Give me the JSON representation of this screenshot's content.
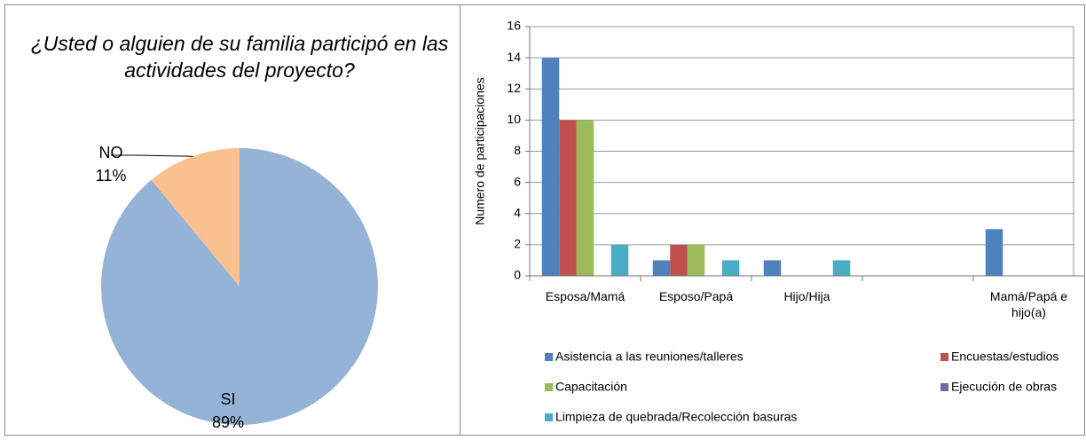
{
  "chart_data": [
    {
      "type": "pie",
      "title": "¿Usted o alguien de su familia participó en las actividades del proyecto?",
      "categories": [
        "SI",
        "NO"
      ],
      "values": [
        89,
        11
      ],
      "value_labels": [
        "89%",
        "11%"
      ],
      "colors": [
        "#95b3d7",
        "#fac090"
      ]
    },
    {
      "type": "bar",
      "categories": [
        "Esposa/Mamá",
        "Esposo/Papá",
        "Hijo/Hija",
        null,
        "Mamá/Papá e hijo(a)"
      ],
      "ylabel": "Numero de participaciones",
      "ylim": [
        0,
        16
      ],
      "yticks": [
        0,
        2,
        4,
        6,
        8,
        10,
        12,
        14,
        16
      ],
      "grid": true,
      "series": [
        {
          "name": "Asistencia a las reuniones/talleres",
          "color": "#4f81bd",
          "values": [
            14,
            1,
            1,
            0,
            3
          ]
        },
        {
          "name": "Encuestas/estudios",
          "color": "#c0504d",
          "values": [
            10,
            2,
            0,
            0,
            0
          ]
        },
        {
          "name": "Capacitación",
          "color": "#9bbb59",
          "values": [
            10,
            2,
            0,
            0,
            0
          ]
        },
        {
          "name": "Ejecución de obras",
          "color": "#8064a2",
          "values": [
            0,
            0,
            0,
            0,
            0
          ]
        },
        {
          "name": "Limpieza de quebrada/Recolección basuras",
          "color": "#4bacc6",
          "values": [
            2,
            1,
            1,
            0,
            0
          ]
        }
      ]
    }
  ]
}
